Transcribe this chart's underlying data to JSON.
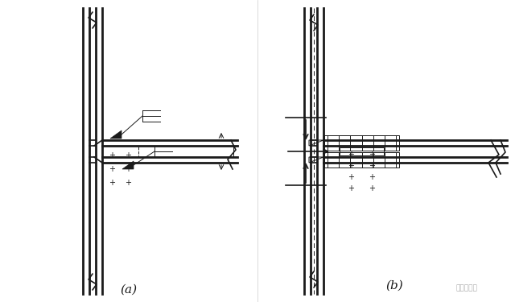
{
  "bg_color": "#ffffff",
  "line_color": "#1a1a1a",
  "label_a": "(a)",
  "label_b": "(b)",
  "watermark": "钔结构设计"
}
